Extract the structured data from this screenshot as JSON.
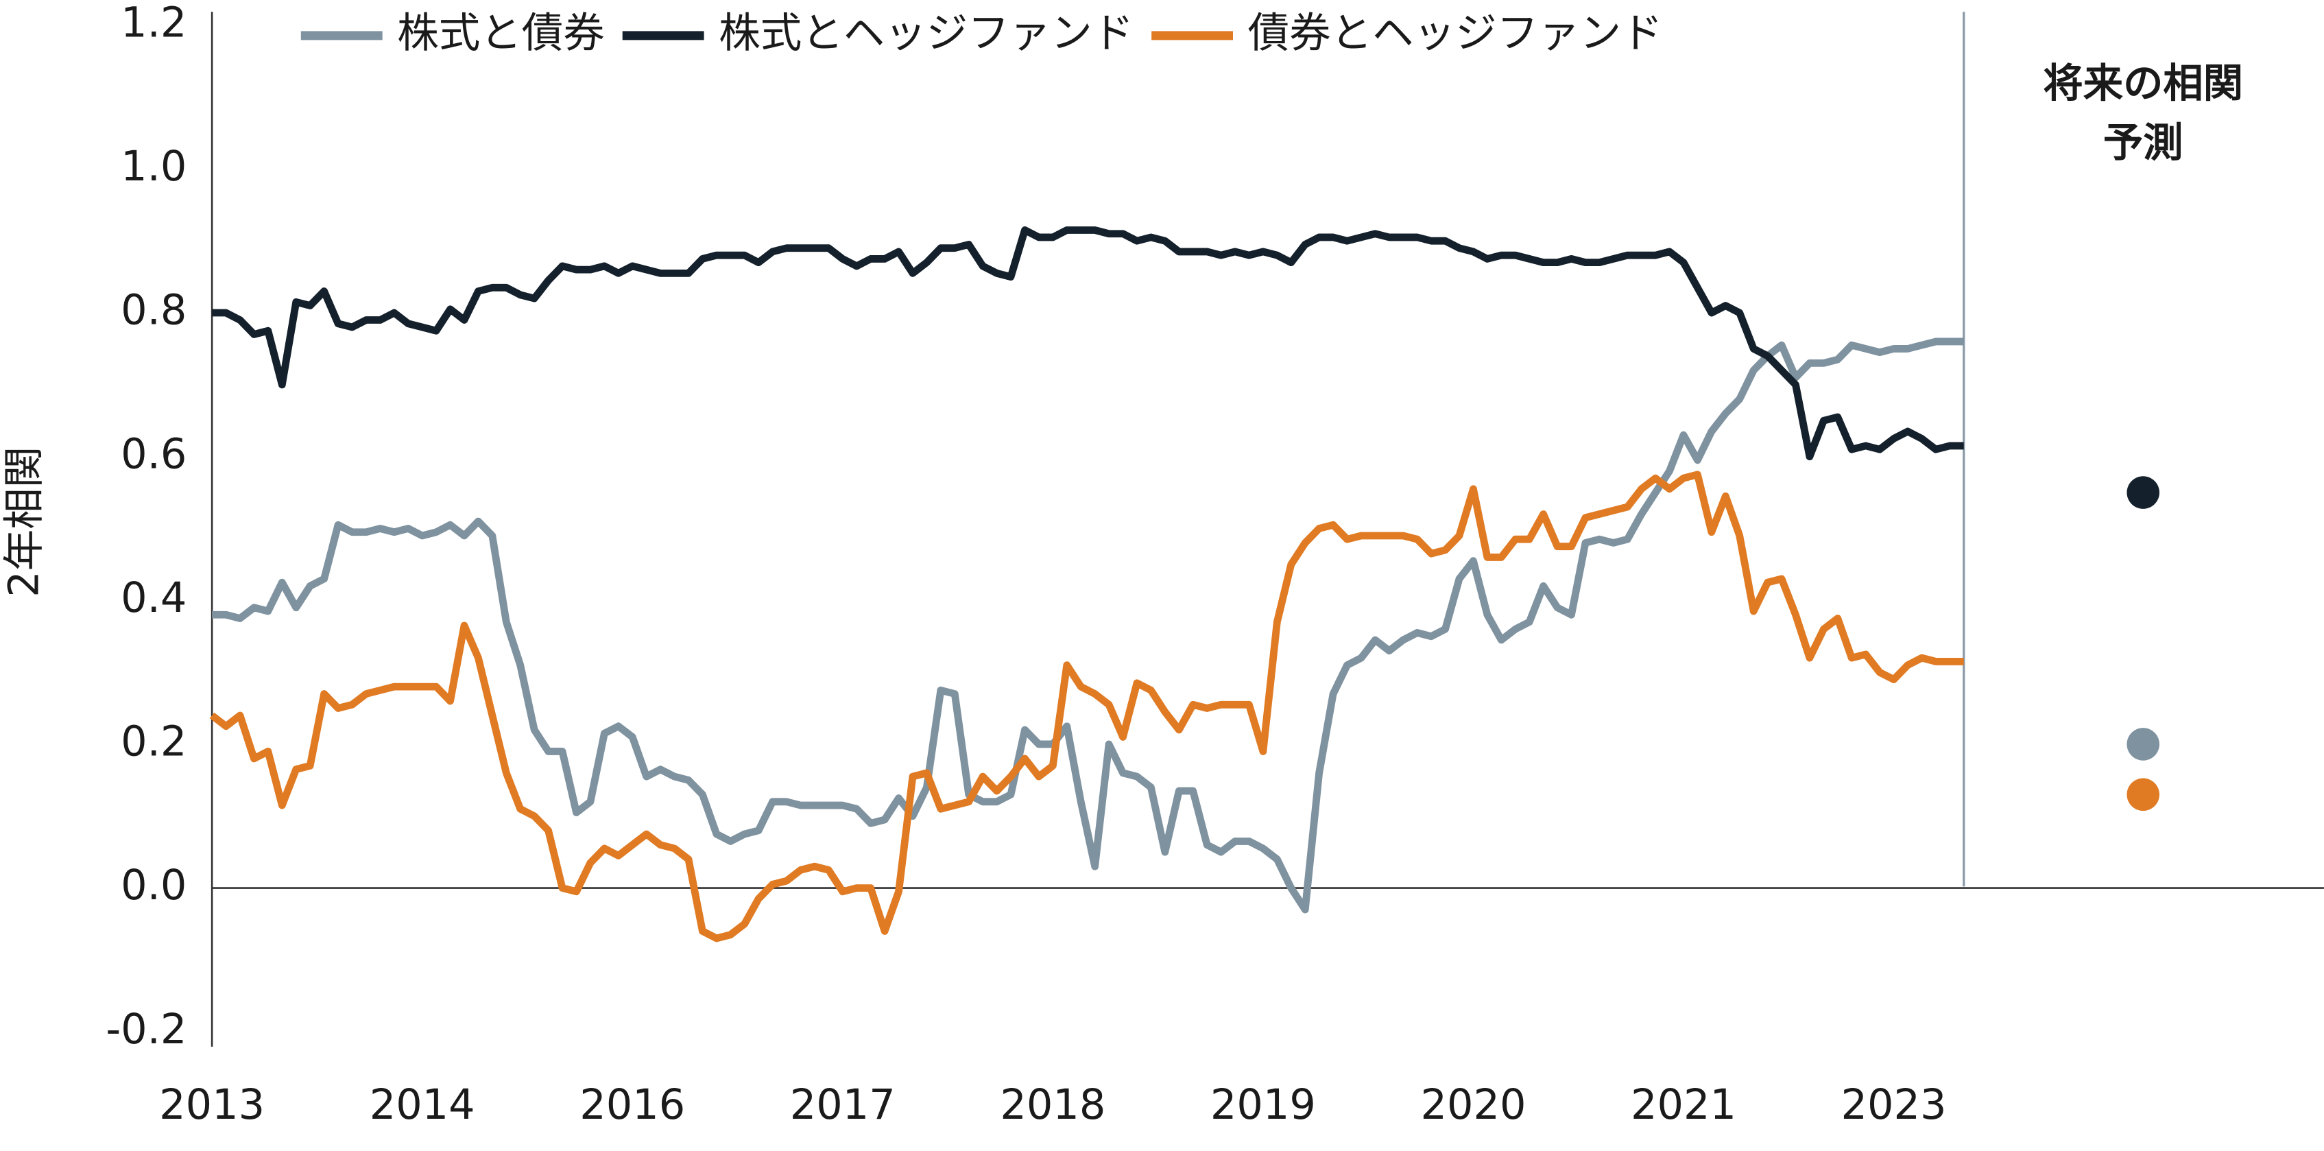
{
  "chart_data": {
    "type": "line",
    "y_label": "2年相関",
    "legend": "top",
    "grid": false,
    "ylim": [
      -0.2,
      1.2
    ],
    "yticks": [
      -0.2,
      {
        "value": 0,
        "label": "0.0"
      },
      0.2,
      0.4,
      0.6,
      0.8,
      {
        "value": 1,
        "label": "1.0"
      },
      1.2
    ],
    "categories": [
      "2013",
      null,
      null,
      null,
      null,
      null,
      null,
      null,
      null,
      null,
      null,
      null,
      null,
      null,
      null,
      "2014",
      null,
      null,
      null,
      null,
      null,
      null,
      null,
      null,
      null,
      null,
      null,
      null,
      null,
      null,
      "2016",
      null,
      null,
      null,
      null,
      null,
      null,
      null,
      null,
      null,
      null,
      null,
      null,
      null,
      null,
      "2017",
      null,
      null,
      null,
      null,
      null,
      null,
      null,
      null,
      null,
      null,
      null,
      null,
      null,
      null,
      "2018",
      null,
      null,
      null,
      null,
      null,
      null,
      null,
      null,
      null,
      null,
      null,
      null,
      null,
      null,
      "2019",
      null,
      null,
      null,
      null,
      null,
      null,
      null,
      null,
      null,
      null,
      null,
      null,
      null,
      null,
      "2020",
      null,
      null,
      null,
      null,
      null,
      null,
      null,
      null,
      null,
      null,
      null,
      null,
      null,
      null,
      "2021",
      null,
      null,
      null,
      null,
      null,
      null,
      null,
      null,
      null,
      null,
      null,
      null,
      null,
      null,
      "2023",
      null,
      null,
      null,
      null,
      null
    ],
    "forecast_title": [
      "将来の相関",
      "予測"
    ],
    "series": [
      {
        "name": "株式と債券",
        "color": "#7f929f",
        "forecast": 0.2,
        "values": [
          0.38,
          0.38,
          0.375,
          0.39,
          0.385,
          0.425,
          0.39,
          0.42,
          0.43,
          0.505,
          0.495,
          0.495,
          0.5,
          0.495,
          0.5,
          0.49,
          0.495,
          0.505,
          0.49,
          0.51,
          0.49,
          0.37,
          0.31,
          0.22,
          0.19,
          0.19,
          0.105,
          0.12,
          0.215,
          0.225,
          0.21,
          0.155,
          0.165,
          0.155,
          0.15,
          0.13,
          0.075,
          0.065,
          0.075,
          0.08,
          0.12,
          0.12,
          0.115,
          0.115,
          0.115,
          0.115,
          0.11,
          0.09,
          0.095,
          0.125,
          0.1,
          0.14,
          0.275,
          0.27,
          0.13,
          0.12,
          0.12,
          0.13,
          0.22,
          0.2,
          0.2,
          0.225,
          0.12,
          0.03,
          0.2,
          0.16,
          0.155,
          0.14,
          0.05,
          0.135,
          0.135,
          0.06,
          0.05,
          0.065,
          0.065,
          0.055,
          0.04,
          0.0,
          -0.03,
          0.16,
          0.27,
          0.31,
          0.32,
          0.345,
          0.33,
          0.345,
          0.355,
          0.35,
          0.36,
          0.43,
          0.455,
          0.38,
          0.345,
          0.36,
          0.37,
          0.42,
          0.39,
          0.38,
          0.48,
          0.485,
          0.48,
          0.485,
          0.52,
          0.55,
          0.58,
          0.63,
          0.595,
          0.635,
          0.66,
          0.68,
          0.72,
          0.74,
          0.755,
          0.71,
          0.73,
          0.73,
          0.735,
          0.755,
          0.75,
          0.745,
          0.75,
          0.75,
          0.755,
          0.76,
          0.76,
          0.76
        ]
      },
      {
        "name": "株式とヘッジファンド",
        "color": "#14202b",
        "forecast": 0.55,
        "values": [
          0.8,
          0.8,
          0.79,
          0.77,
          0.775,
          0.7,
          0.815,
          0.81,
          0.83,
          0.785,
          0.78,
          0.79,
          0.79,
          0.8,
          0.785,
          0.78,
          0.775,
          0.805,
          0.79,
          0.83,
          0.835,
          0.835,
          0.825,
          0.82,
          0.845,
          0.865,
          0.86,
          0.86,
          0.865,
          0.855,
          0.865,
          0.86,
          0.855,
          0.855,
          0.855,
          0.875,
          0.88,
          0.88,
          0.88,
          0.87,
          0.885,
          0.89,
          0.89,
          0.89,
          0.89,
          0.875,
          0.865,
          0.875,
          0.875,
          0.885,
          0.855,
          0.87,
          0.89,
          0.89,
          0.895,
          0.865,
          0.855,
          0.85,
          0.915,
          0.905,
          0.905,
          0.915,
          0.915,
          0.915,
          0.91,
          0.91,
          0.9,
          0.905,
          0.9,
          0.885,
          0.885,
          0.885,
          0.88,
          0.885,
          0.88,
          0.885,
          0.88,
          0.87,
          0.895,
          0.905,
          0.905,
          0.9,
          0.905,
          0.91,
          0.905,
          0.905,
          0.905,
          0.9,
          0.9,
          0.89,
          0.885,
          0.875,
          0.88,
          0.88,
          0.875,
          0.87,
          0.87,
          0.875,
          0.87,
          0.87,
          0.875,
          0.88,
          0.88,
          0.88,
          0.885,
          0.87,
          0.835,
          0.8,
          0.81,
          0.8,
          0.75,
          0.74,
          0.72,
          0.7,
          0.6,
          0.65,
          0.655,
          0.61,
          0.615,
          0.61,
          0.625,
          0.635,
          0.625,
          0.61,
          0.615,
          0.615
        ]
      },
      {
        "name": "債券とヘッジファンド",
        "color": "#e07b24",
        "forecast": 0.13,
        "values": [
          0.24,
          0.225,
          0.24,
          0.18,
          0.19,
          0.115,
          0.165,
          0.17,
          0.27,
          0.25,
          0.255,
          0.27,
          0.275,
          0.28,
          0.28,
          0.28,
          0.28,
          0.26,
          0.365,
          0.32,
          0.24,
          0.16,
          0.11,
          0.1,
          0.08,
          0.0,
          -0.005,
          0.035,
          0.055,
          0.045,
          0.06,
          0.075,
          0.06,
          0.055,
          0.04,
          -0.06,
          -0.07,
          -0.065,
          -0.05,
          -0.015,
          0.005,
          0.01,
          0.025,
          0.03,
          0.025,
          -0.005,
          0.0,
          0.0,
          -0.06,
          -0.005,
          0.155,
          0.16,
          0.11,
          0.115,
          0.12,
          0.155,
          0.135,
          0.155,
          0.18,
          0.155,
          0.17,
          0.31,
          0.28,
          0.27,
          0.255,
          0.21,
          0.285,
          0.275,
          0.245,
          0.22,
          0.255,
          0.25,
          0.255,
          0.255,
          0.255,
          0.19,
          0.37,
          0.45,
          0.48,
          0.5,
          0.505,
          0.485,
          0.49,
          0.49,
          0.49,
          0.49,
          0.485,
          0.465,
          0.47,
          0.49,
          0.555,
          0.46,
          0.46,
          0.485,
          0.485,
          0.52,
          0.475,
          0.475,
          0.515,
          0.52,
          0.525,
          0.53,
          0.555,
          0.57,
          0.555,
          0.57,
          0.575,
          0.495,
          0.545,
          0.49,
          0.385,
          0.425,
          0.43,
          0.38,
          0.32,
          0.36,
          0.375,
          0.32,
          0.325,
          0.3,
          0.29,
          0.31,
          0.32,
          0.315,
          0.315,
          0.315
        ]
      }
    ]
  }
}
